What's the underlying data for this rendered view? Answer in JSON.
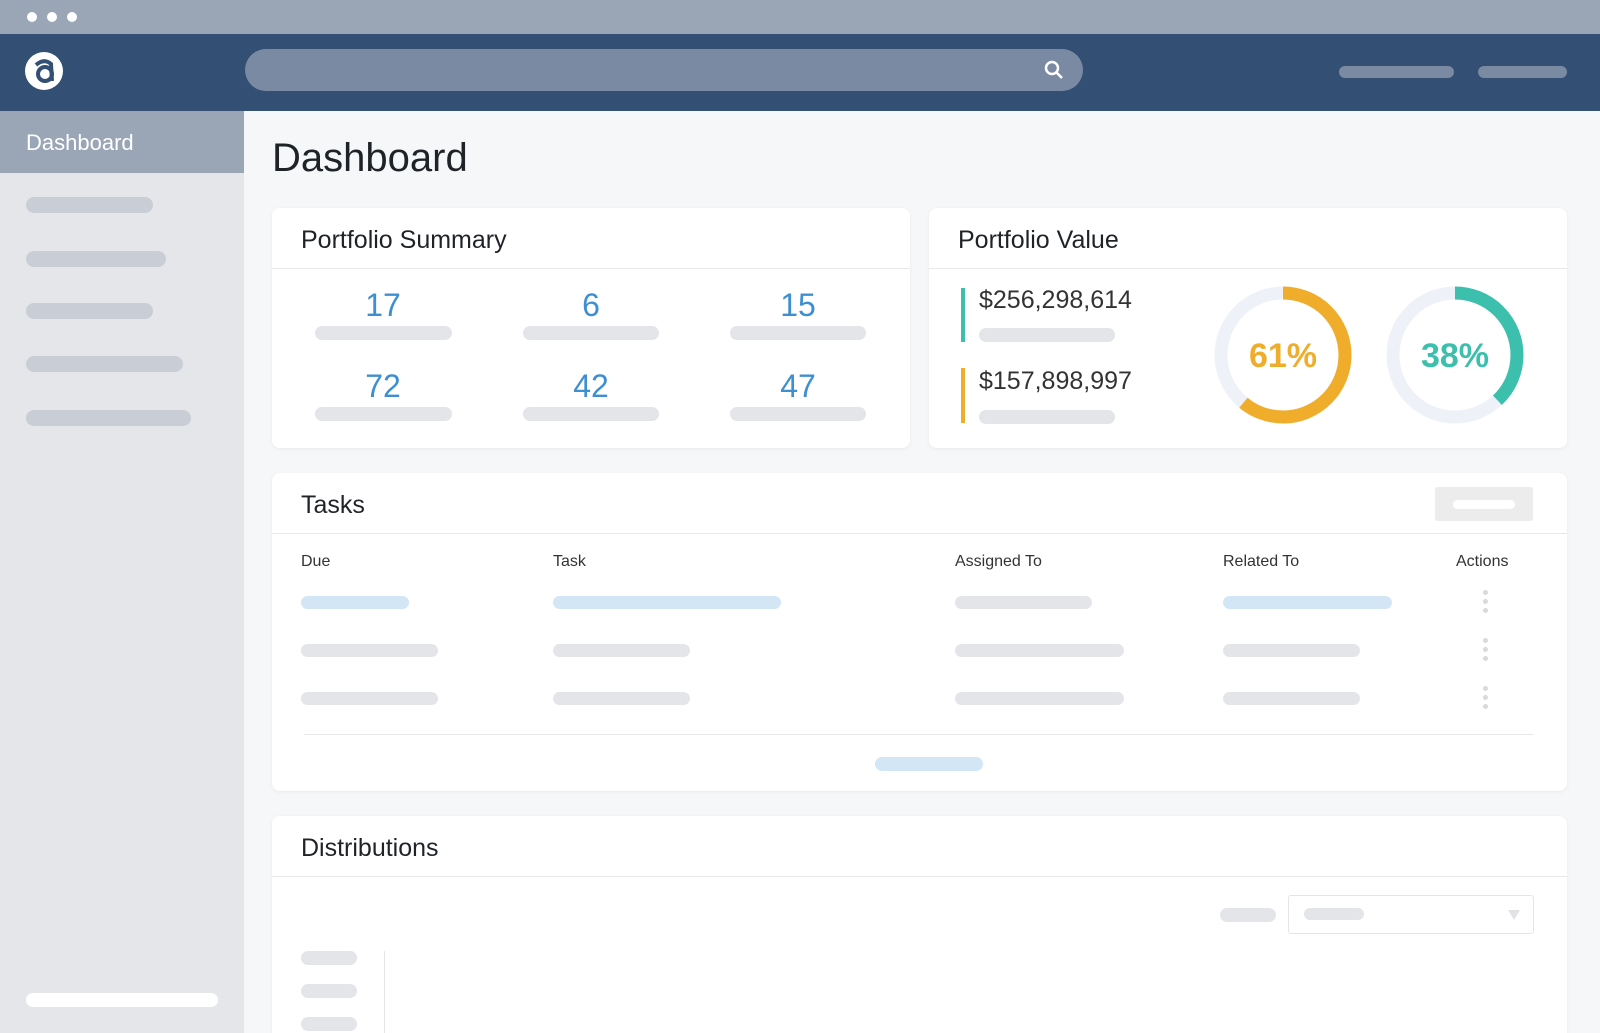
{
  "sidebar": {
    "active_item": "Dashboard"
  },
  "page_title": "Dashboard",
  "portfolio_summary": {
    "title": "Portfolio Summary",
    "values": [
      17,
      6,
      15,
      72,
      42,
      47
    ]
  },
  "portfolio_value": {
    "title": "Portfolio Value",
    "amounts": [
      "$256,298,614",
      "$157,898,997"
    ],
    "donuts": [
      {
        "value": 61,
        "label": "61%",
        "color": "#f0ad2b"
      },
      {
        "value": 38,
        "label": "38%",
        "color": "#3dbfad"
      }
    ]
  },
  "tasks": {
    "title": "Tasks",
    "columns": [
      "Due",
      "Task",
      "Assigned To",
      "Related To",
      "Actions"
    ]
  },
  "distributions": {
    "title": "Distributions"
  }
}
